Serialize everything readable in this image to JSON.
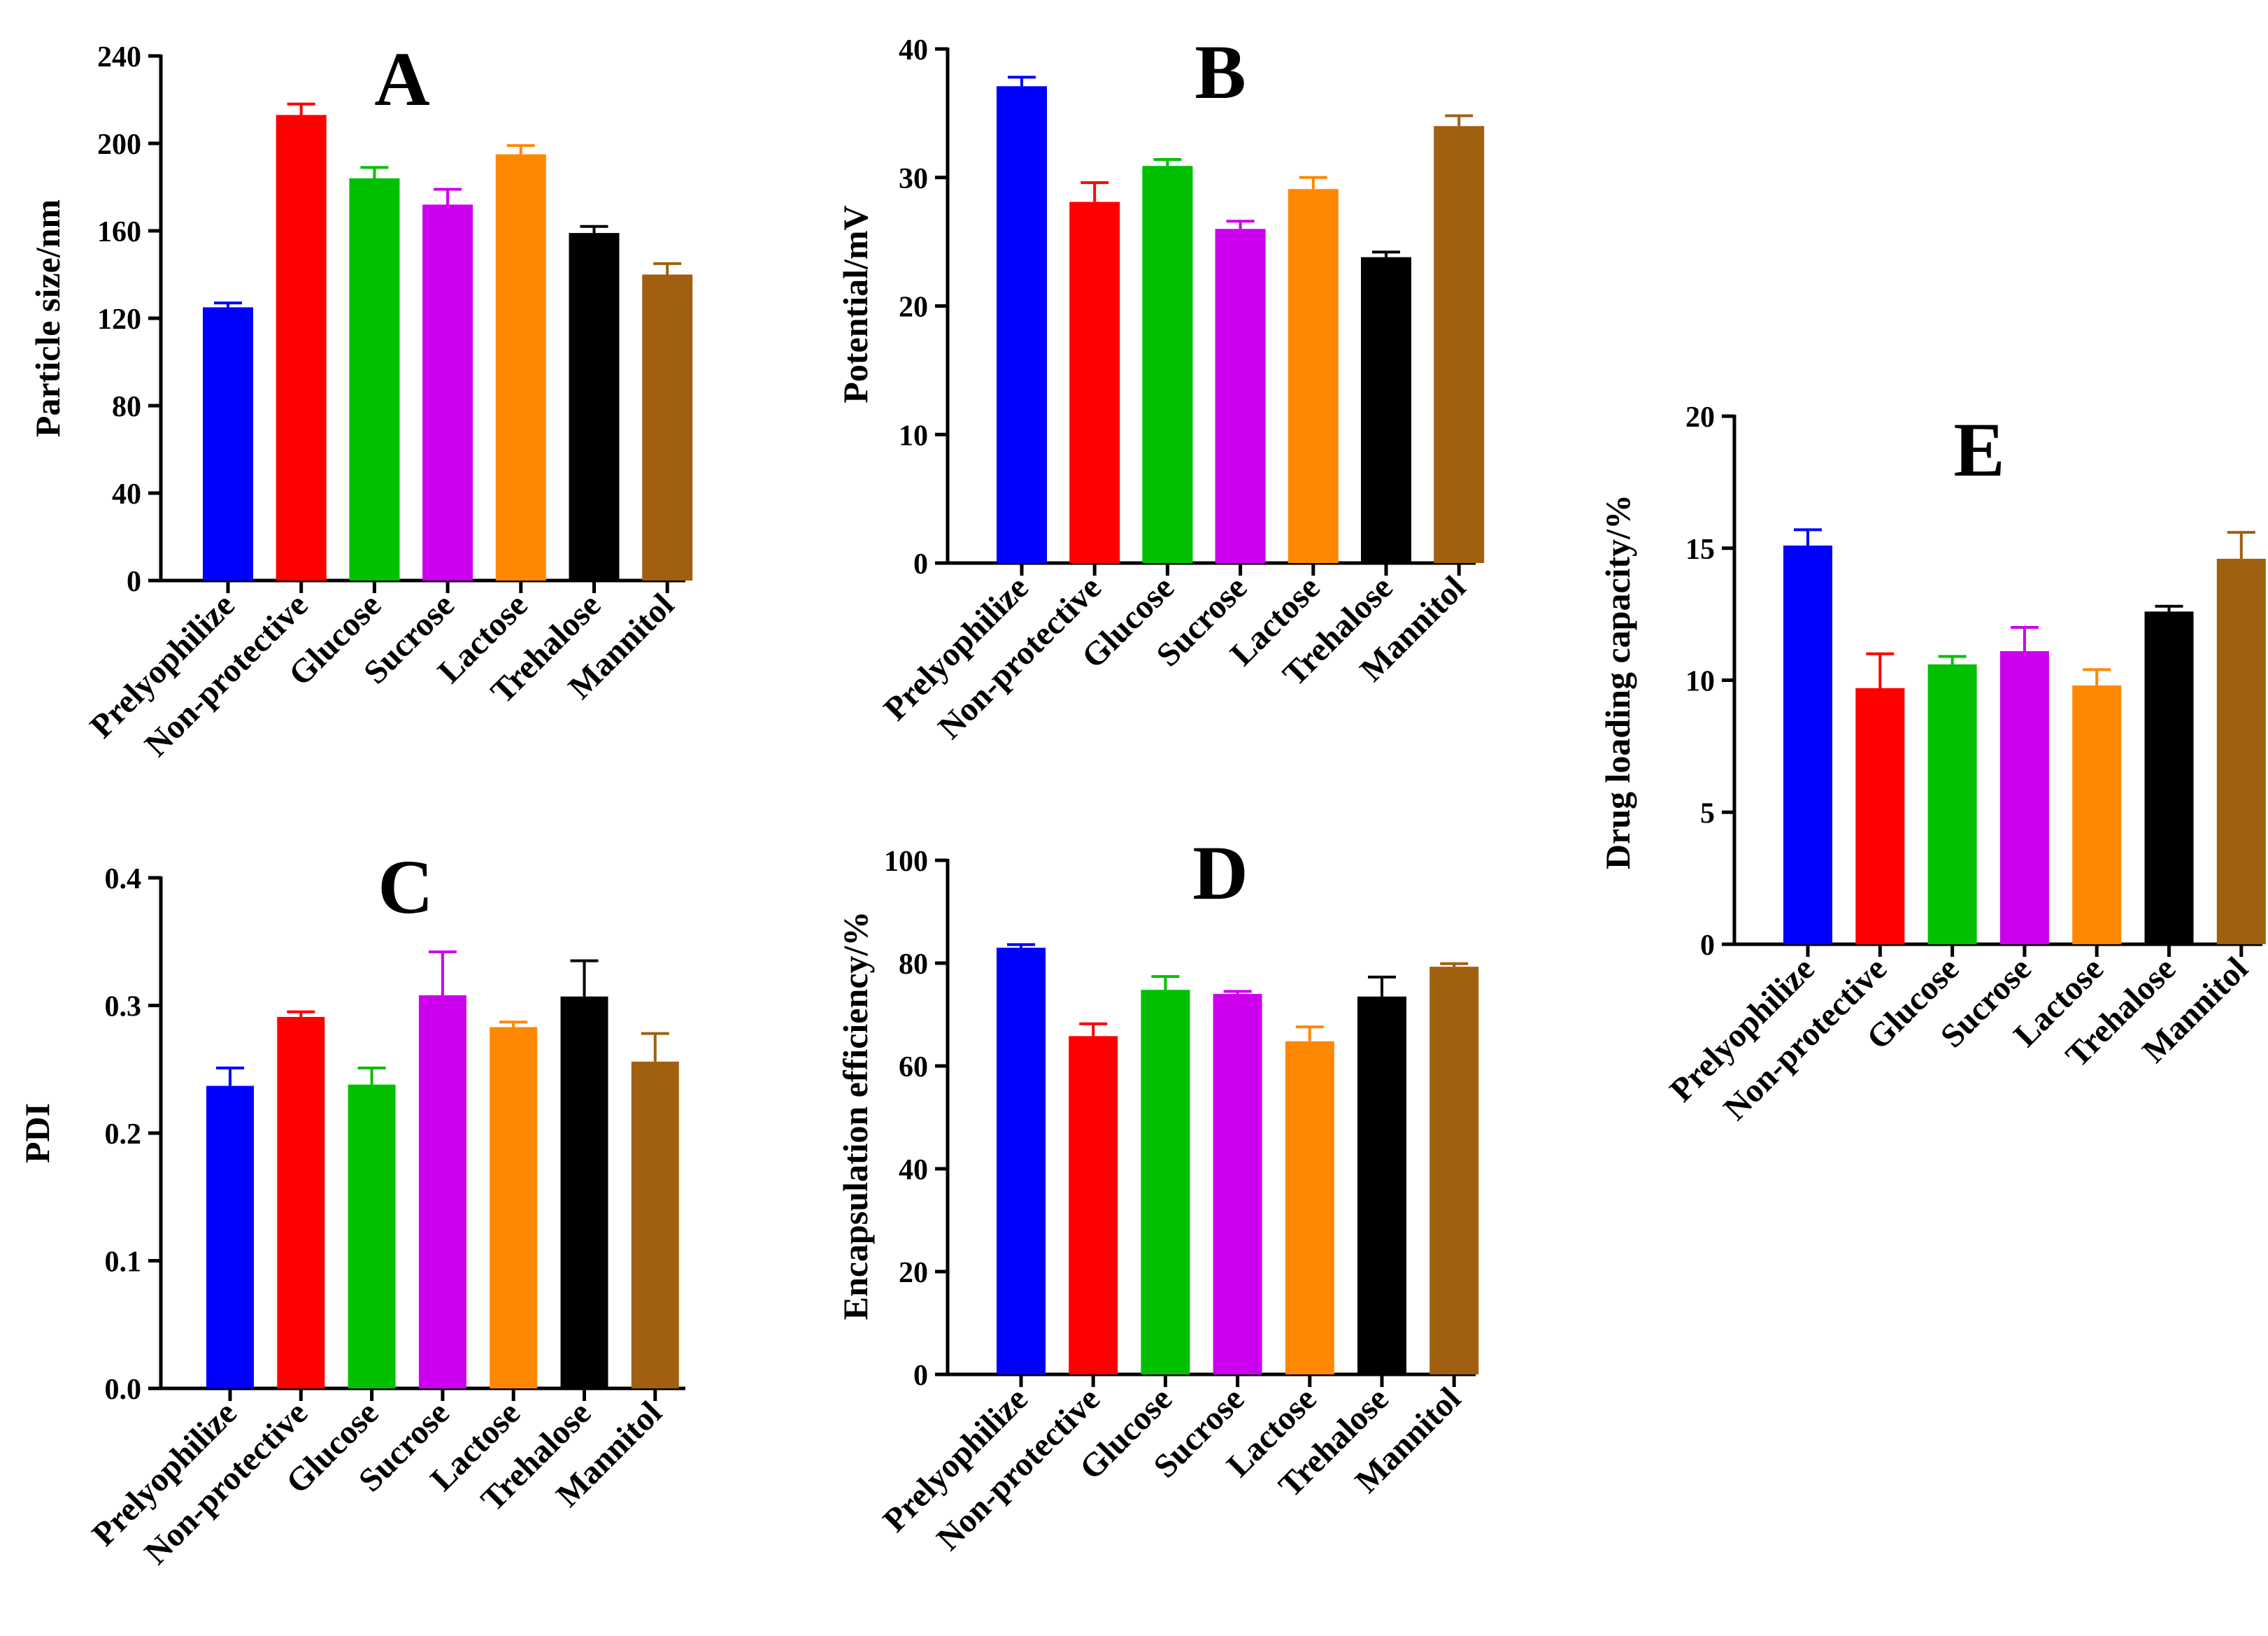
{
  "chart_data": [
    {
      "panel": "A",
      "type": "bar",
      "title": "A",
      "xlabel": "",
      "ylabel": "Particle size/nm",
      "ylim": [
        0,
        240
      ],
      "yticks": [
        0,
        40,
        80,
        120,
        160,
        200,
        240
      ],
      "ytick_labels": [
        "0",
        "40",
        "80",
        "120",
        "160",
        "200",
        "240"
      ],
      "categories": [
        "Prelyophilize",
        "Non-protective",
        "Glucose",
        "Sucrose",
        "Lactose",
        "Trehalose",
        "Mannitol"
      ],
      "values": [
        125,
        213,
        184,
        172,
        195,
        159,
        140
      ],
      "errors": [
        2,
        5,
        5,
        7,
        4,
        3,
        5
      ],
      "colors": [
        "#0000ff",
        "#ff0000",
        "#00c000",
        "#cc00ee",
        "#ff8800",
        "#000000",
        "#a06010"
      ]
    },
    {
      "panel": "B",
      "type": "bar",
      "title": "B",
      "xlabel": "",
      "ylabel": "Potential/mV",
      "ylim": [
        0,
        40
      ],
      "yticks": [
        0,
        10,
        20,
        30,
        40
      ],
      "ytick_labels": [
        "0",
        "10",
        "20",
        "30",
        "40"
      ],
      "categories": [
        "Prelyophilize",
        "Non-protective",
        "Glucose",
        "Sucrose",
        "Lactose",
        "Trehalose",
        "Mannitol"
      ],
      "values": [
        37.1,
        28.1,
        30.9,
        26.0,
        29.1,
        23.8,
        34.0
      ],
      "errors": [
        0.7,
        1.5,
        0.5,
        0.6,
        0.9,
        0.4,
        0.8
      ],
      "colors": [
        "#0000ff",
        "#ff0000",
        "#00c000",
        "#cc00ee",
        "#ff8800",
        "#000000",
        "#a06010"
      ]
    },
    {
      "panel": "C",
      "type": "bar",
      "title": "C",
      "xlabel": "",
      "ylabel": "PDI",
      "ylim": [
        0,
        0.4
      ],
      "yticks": [
        0,
        0.1,
        0.2,
        0.3,
        0.4
      ],
      "ytick_labels": [
        "0.0",
        "0.1",
        "0.2",
        "0.3",
        "0.4"
      ],
      "categories": [
        "Prelyophilize",
        "Non-protective",
        "Glucose",
        "Sucrose",
        "Lactose",
        "Trehalose",
        "Mannitol"
      ],
      "values": [
        0.237,
        0.291,
        0.238,
        0.308,
        0.283,
        0.307,
        0.256
      ],
      "errors": [
        0.014,
        0.004,
        0.013,
        0.034,
        0.004,
        0.028,
        0.022
      ],
      "colors": [
        "#0000ff",
        "#ff0000",
        "#00c000",
        "#cc00ee",
        "#ff8800",
        "#000000",
        "#a06010"
      ]
    },
    {
      "panel": "D",
      "type": "bar",
      "title": "D",
      "xlabel": "",
      "ylabel": "Encapsulation efficiency/%",
      "ylim": [
        0,
        100
      ],
      "yticks": [
        0,
        20,
        40,
        60,
        80,
        100
      ],
      "ytick_labels": [
        "0",
        "20",
        "40",
        "60",
        "80",
        "100"
      ],
      "categories": [
        "Prelyophilize",
        "Non-protective",
        "Glucose",
        "Sucrose",
        "Lactose",
        "Trehalose",
        "Mannitol"
      ],
      "values": [
        83.0,
        65.8,
        74.8,
        74.0,
        64.8,
        73.5,
        79.3
      ],
      "errors": [
        0.6,
        2.4,
        2.6,
        0.5,
        2.8,
        3.8,
        0.6
      ],
      "colors": [
        "#0000ff",
        "#ff0000",
        "#00c000",
        "#cc00ee",
        "#ff8800",
        "#000000",
        "#a06010"
      ]
    },
    {
      "panel": "E",
      "type": "bar",
      "title": "E",
      "xlabel": "",
      "ylabel": "Drug loading capacity/%",
      "ylim": [
        0,
        20
      ],
      "yticks": [
        0,
        5,
        10,
        15,
        20
      ],
      "ytick_labels": [
        "0",
        "5",
        "10",
        "15",
        "20"
      ],
      "categories": [
        "Prelyophilize",
        "Non-protective",
        "Glucose",
        "Sucrose",
        "Lactose",
        "Trehalose",
        "Mannitol"
      ],
      "values": [
        15.1,
        9.7,
        10.6,
        11.1,
        9.8,
        12.6,
        14.6
      ],
      "errors": [
        0.6,
        1.3,
        0.3,
        0.9,
        0.6,
        0.2,
        1.0
      ],
      "colors": [
        "#0000ff",
        "#ff0000",
        "#00c000",
        "#cc00ee",
        "#ff8800",
        "#000000",
        "#a06010"
      ]
    }
  ]
}
